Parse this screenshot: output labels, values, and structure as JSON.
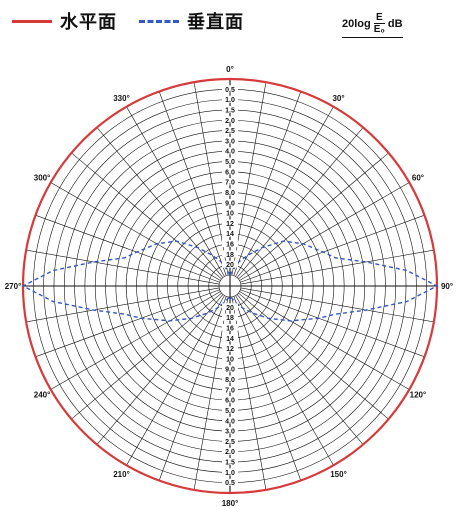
{
  "legend": {
    "horizontal_label": "水平面",
    "vertical_label": "垂直面"
  },
  "formula": {
    "prefix": "20log",
    "numerator": "E",
    "denominator": "E₀",
    "unit": "dB"
  },
  "chart_data": {
    "type": "polar",
    "angle_labels": [
      "0°",
      "30°",
      "60°",
      "90°",
      "120°",
      "150°",
      "180°",
      "210°",
      "240°",
      "270°",
      "300°",
      "330°"
    ],
    "radial_tick_labels": [
      "0.5",
      "1.0",
      "1.5",
      "2.0",
      "2.5",
      "3.0",
      "4.0",
      "5.0",
      "6.0",
      "7.0",
      "8.0",
      "9.0",
      "10",
      "12",
      "14",
      "16",
      "18",
      "20"
    ],
    "lower_tick_labels": [
      "20",
      "18",
      "16",
      "14",
      "12",
      "10",
      "9.0",
      "8.0",
      "7.0",
      "6.0",
      "5.0",
      "4.0",
      "3.0",
      "2.5",
      "2.0",
      "1.5",
      "1.0",
      "0.5"
    ],
    "series": [
      {
        "name": "水平面",
        "color": "#d63a3a",
        "style": "solid",
        "theta": [
          0,
          30,
          60,
          90,
          120,
          150,
          180,
          210,
          240,
          270,
          300,
          330
        ],
        "r": [
          0,
          0,
          0,
          0,
          0,
          0,
          0,
          0,
          0,
          0,
          0,
          0
        ]
      },
      {
        "name": "垂直面",
        "color": "#3558c9",
        "style": "dashed",
        "theta": [
          0,
          10,
          20,
          30,
          40,
          50,
          60,
          70,
          75,
          80,
          85,
          90,
          95,
          100,
          105,
          110,
          120,
          130,
          140,
          150,
          160,
          170,
          180
        ],
        "r": [
          20,
          19.5,
          18.5,
          17.5,
          16,
          14,
          12.5,
          11,
          10,
          7,
          3,
          0,
          3,
          7,
          10,
          11.5,
          14,
          16,
          17.5,
          18.5,
          19.3,
          19.8,
          20
        ]
      }
    ]
  }
}
